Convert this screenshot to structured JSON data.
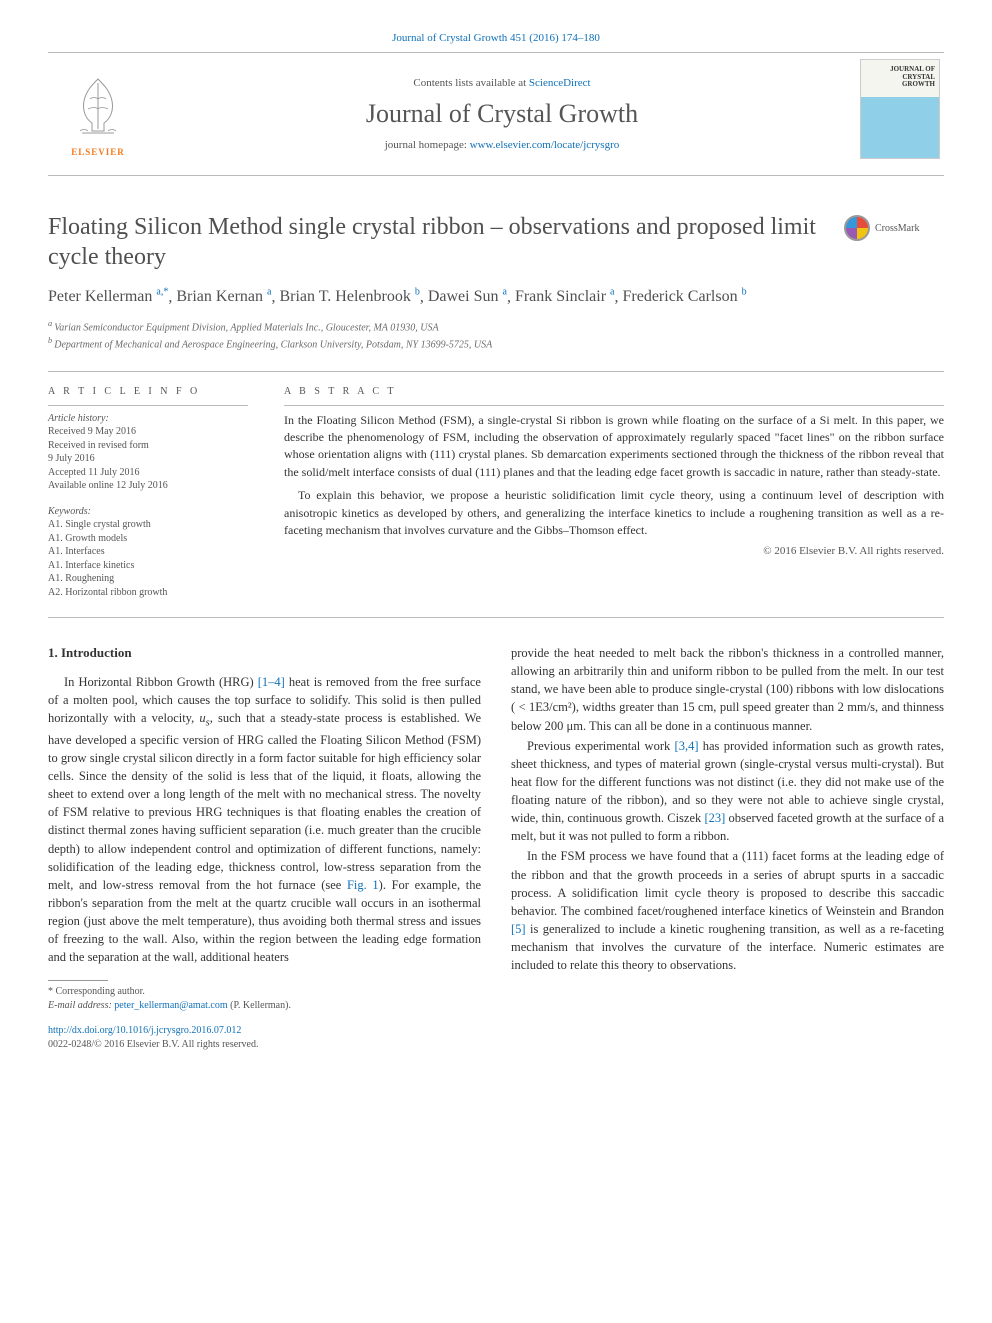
{
  "journal_ref_line": "Journal of Crystal Growth 451 (2016) 174–180",
  "banner": {
    "contents_prefix": "Contents lists available at ",
    "contents_link": "ScienceDirect",
    "journal_title": "Journal of Crystal Growth",
    "homepage_prefix": "journal homepage: ",
    "homepage_link": "www.elsevier.com/locate/jcrysgro",
    "publisher_name": "ELSEVIER",
    "cover_line1": "JOURNAL OF",
    "cover_line2": "CRYSTAL",
    "cover_line3": "GROWTH"
  },
  "crossmark_label": "CrossMark",
  "article": {
    "title": "Floating Silicon Method single crystal ribbon – observations and proposed limit cycle theory",
    "authors_html": "Peter Kellerman|a,*|, Brian Kernan|a|, Brian T. Helenbrook|b|, Dawei Sun|a|, Frank Sinclair|a|, Frederick Carlson|b|",
    "authors": [
      {
        "name": "Peter Kellerman",
        "aff": "a",
        "corr": true
      },
      {
        "name": "Brian Kernan",
        "aff": "a",
        "corr": false
      },
      {
        "name": "Brian T. Helenbrook",
        "aff": "b",
        "corr": false
      },
      {
        "name": "Dawei Sun",
        "aff": "a",
        "corr": false
      },
      {
        "name": "Frank Sinclair",
        "aff": "a",
        "corr": false
      },
      {
        "name": "Frederick Carlson",
        "aff": "b",
        "corr": false
      }
    ],
    "affiliations": [
      {
        "key": "a",
        "text": "Varian Semiconductor Equipment Division, Applied Materials Inc., Gloucester, MA 01930, USA"
      },
      {
        "key": "b",
        "text": "Department of Mechanical and Aerospace Engineering, Clarkson University, Potsdam, NY 13699-5725, USA"
      }
    ]
  },
  "info": {
    "label": "A R T I C L E   I N F O",
    "history_label": "Article history:",
    "history": [
      "Received 9 May 2016",
      "Received in revised form",
      "9 July 2016",
      "Accepted 11 July 2016",
      "Available online 12 July 2016"
    ],
    "keywords_label": "Keywords:",
    "keywords": [
      "A1. Single crystal growth",
      "A1. Growth models",
      "A1. Interfaces",
      "A1. Interface kinetics",
      "A1. Roughening",
      "A2. Horizontal ribbon growth"
    ]
  },
  "abstract": {
    "label": "A B S T R A C T",
    "paragraphs": [
      "In the Floating Silicon Method (FSM), a single-crystal Si ribbon is grown while floating on the surface of a Si melt. In this paper, we describe the phenomenology of FSM, including the observation of approximately regularly spaced \"facet lines\" on the ribbon surface whose orientation aligns with (111) crystal planes. Sb demarcation experiments sectioned through the thickness of the ribbon reveal that the solid/melt interface consists of dual (111) planes and that the leading edge facet growth is saccadic in nature, rather than steady-state.",
      "To explain this behavior, we propose a heuristic solidification limit cycle theory, using a continuum level of description with anisotropic kinetics as developed by others, and generalizing the interface kinetics to include a roughening transition as well as a re-faceting mechanism that involves curvature and the Gibbs–Thomson effect."
    ],
    "copyright": "© 2016 Elsevier B.V. All rights reserved."
  },
  "body": {
    "section_number": "1.",
    "section_title": "Introduction",
    "left": [
      "In Horizontal Ribbon Growth (HRG) [1–4] heat is removed from the free surface of a molten pool, which causes the top surface to solidify. This solid is then pulled horizontally with a velocity, uₛ, such that a steady-state process is established. We have developed a specific version of HRG called the Floating Silicon Method (FSM) to grow single crystal silicon directly in a form factor suitable for high efficiency solar cells. Since the density of the solid is less that of the liquid, it floats, allowing the sheet to extend over a long length of the melt with no mechanical stress. The novelty of FSM relative to previous HRG techniques is that floating enables the creation of distinct thermal zones having sufficient separation (i.e. much greater than the crucible depth) to allow independent control and optimization of different functions, namely: solidification of the leading edge, thickness control, low-stress separation from the melt, and low-stress removal from the hot furnace (see Fig. 1). For example, the ribbon's separation from the melt at the quartz crucible wall occurs in an isothermal region (just above the melt temperature), thus avoiding both thermal stress and issues of freezing to the wall. Also, within the region between the leading edge formation and the separation at the wall, additional heaters"
    ],
    "right": [
      "provide the heat needed to melt back the ribbon's thickness in a controlled manner, allowing an arbitrarily thin and uniform ribbon to be pulled from the melt. In our test stand, we have been able to produce single-crystal (100) ribbons with low dislocations ( < 1E3/cm²), widths greater than 15 cm, pull speed greater than 2 mm/s, and thinness below 200 μm. This can all be done in a continuous manner.",
      "Previous experimental work [3,4] has provided information such as growth rates, sheet thickness, and types of material grown (single-crystal versus multi-crystal). But heat flow for the different functions was not distinct (i.e. they did not make use of the floating nature of the ribbon), and so they were not able to achieve single crystal, wide, thin, continuous growth. Ciszek [23] observed faceted growth at the surface of a melt, but it was not pulled to form a ribbon.",
      "In the FSM process we have found that a (111) facet forms at the leading edge of the ribbon and that the growth proceeds in a series of abrupt spurts in a saccadic process. A solidification limit cycle theory is proposed to describe this saccadic behavior. The combined facet/roughened interface kinetics of Weinstein and Brandon [5] is generalized to include a kinetic roughening transition, as well as a re-faceting mechanism that involves the curvature of the interface. Numeric estimates are included to relate this theory to observations."
    ]
  },
  "footnote": {
    "corr_label": "* Corresponding author.",
    "email_label": "E-mail address: ",
    "email": "peter_kellerman@amat.com",
    "email_suffix": " (P. Kellerman)."
  },
  "doi": {
    "url": "http://dx.doi.org/10.1016/j.jcrysgro.2016.07.012",
    "issn_line": "0022-0248/© 2016 Elsevier B.V. All rights reserved."
  },
  "colors": {
    "link": "#1071b8",
    "text": "#333333",
    "muted": "#555555",
    "elsevier_orange": "#f47b20",
    "rule": "#bbbbbb"
  }
}
